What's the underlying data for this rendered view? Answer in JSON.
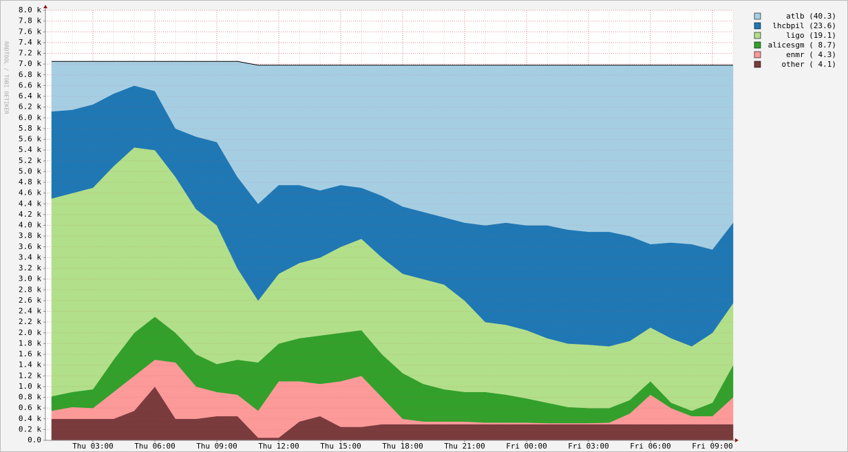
{
  "chart_data": {
    "type": "area",
    "stacked": true,
    "watermark": "RRDTOOL / TOBI OETIKER",
    "categories": [
      null,
      null,
      "Thu 03:00",
      null,
      null,
      "Thu 06:00",
      null,
      null,
      "Thu 09:00",
      null,
      null,
      "Thu 12:00",
      null,
      null,
      "Thu 15:00",
      null,
      null,
      "Thu 18:00",
      null,
      null,
      "Thu 21:00",
      null,
      null,
      "Fri 00:00",
      null,
      null,
      "Fri 03:00",
      null,
      null,
      "Fri 06:00",
      null,
      null,
      "Fri 09:00",
      null
    ],
    "series": [
      {
        "name": "atlb (40.3)",
        "color": "#a6cee3",
        "values": [
          930,
          900,
          800,
          600,
          450,
          550,
          1250,
          1400,
          1500,
          2150,
          2580,
          2230,
          2230,
          2330,
          2230,
          2280,
          2430,
          2630,
          2730,
          2830,
          2930,
          2980,
          2930,
          2980,
          2980,
          3060,
          3100,
          3100,
          3180,
          3330,
          3300,
          3330,
          3430,
          2930
        ]
      },
      {
        "name": "lhcbpil (23.6)",
        "color": "#1f78b4",
        "values": [
          1620,
          1550,
          1550,
          1350,
          1150,
          1100,
          900,
          1350,
          1550,
          1700,
          1800,
          1650,
          1450,
          1250,
          1150,
          950,
          1150,
          1250,
          1250,
          1250,
          1450,
          1800,
          1900,
          1950,
          2100,
          2120,
          2100,
          2130,
          1950,
          1550,
          1780,
          1900,
          1550,
          1500
        ]
      },
      {
        "name": "ligo (19.1)",
        "color": "#b2df8a",
        "values": [
          3680,
          3700,
          3750,
          3600,
          3450,
          3100,
          2900,
          2700,
          2580,
          1700,
          1150,
          1300,
          1400,
          1450,
          1600,
          1700,
          1800,
          1850,
          1950,
          1950,
          1700,
          1300,
          1300,
          1270,
          1200,
          1180,
          1180,
          1150,
          1100,
          1000,
          1200,
          1200,
          1300,
          1150
        ]
      },
      {
        "name": "alicesgm ( 8.7)",
        "color": "#33a02c",
        "values": [
          270,
          280,
          350,
          600,
          800,
          800,
          550,
          600,
          520,
          650,
          900,
          700,
          800,
          900,
          900,
          850,
          800,
          850,
          700,
          600,
          550,
          570,
          520,
          450,
          380,
          300,
          280,
          270,
          250,
          250,
          100,
          100,
          250,
          600
        ]
      },
      {
        "name": "enmr ( 4.3)",
        "color": "#fb9a99",
        "values": [
          150,
          220,
          200,
          500,
          650,
          500,
          1050,
          600,
          450,
          400,
          500,
          1050,
          750,
          600,
          850,
          950,
          500,
          100,
          50,
          50,
          50,
          30,
          30,
          30,
          20,
          20,
          20,
          30,
          200,
          550,
          300,
          150,
          150,
          500
        ]
      },
      {
        "name": "other ( 4.1)",
        "color": "#7a3b3d",
        "values": [
          400,
          400,
          400,
          400,
          550,
          1000,
          400,
          400,
          450,
          450,
          50,
          50,
          350,
          450,
          250,
          250,
          300,
          300,
          300,
          300,
          300,
          300,
          300,
          300,
          300,
          300,
          300,
          300,
          300,
          300,
          300,
          300,
          300,
          300
        ]
      }
    ],
    "ylim": [
      0,
      8000
    ],
    "yticks": [
      {
        "value": 0,
        "label": "0.0"
      },
      {
        "value": 200,
        "label": "0.2 k"
      },
      {
        "value": 400,
        "label": "0.4 k"
      },
      {
        "value": 600,
        "label": "0.6 k"
      },
      {
        "value": 800,
        "label": "0.8 k"
      },
      {
        "value": 1000,
        "label": "1.0 k"
      },
      {
        "value": 1200,
        "label": "1.2 k"
      },
      {
        "value": 1400,
        "label": "1.4 k"
      },
      {
        "value": 1600,
        "label": "1.6 k"
      },
      {
        "value": 1800,
        "label": "1.8 k"
      },
      {
        "value": 2000,
        "label": "2.0 k"
      },
      {
        "value": 2200,
        "label": "2.2 k"
      },
      {
        "value": 2400,
        "label": "2.4 k"
      },
      {
        "value": 2600,
        "label": "2.6 k"
      },
      {
        "value": 2800,
        "label": "2.8 k"
      },
      {
        "value": 3000,
        "label": "3.0 k"
      },
      {
        "value": 3200,
        "label": "3.2 k"
      },
      {
        "value": 3400,
        "label": "3.4 k"
      },
      {
        "value": 3600,
        "label": "3.6 k"
      },
      {
        "value": 3800,
        "label": "3.8 k"
      },
      {
        "value": 4000,
        "label": "4.0 k"
      },
      {
        "value": 4200,
        "label": "4.2 k"
      },
      {
        "value": 4400,
        "label": "4.4 k"
      },
      {
        "value": 4600,
        "label": "4.6 k"
      },
      {
        "value": 4800,
        "label": "4.8 k"
      },
      {
        "value": 5000,
        "label": "5.0 k"
      },
      {
        "value": 5200,
        "label": "5.2 k"
      },
      {
        "value": 5400,
        "label": "5.4 k"
      },
      {
        "value": 5600,
        "label": "5.6 k"
      },
      {
        "value": 5800,
        "label": "5.8 k"
      },
      {
        "value": 6000,
        "label": "6.0 k"
      },
      {
        "value": 6200,
        "label": "6.2 k"
      },
      {
        "value": 6400,
        "label": "6.4 k"
      },
      {
        "value": 6600,
        "label": "6.6 k"
      },
      {
        "value": 6800,
        "label": "6.8 k"
      },
      {
        "value": 7000,
        "label": "7.0 k"
      },
      {
        "value": 7200,
        "label": "7.2 k"
      },
      {
        "value": 7400,
        "label": "7.4 k"
      },
      {
        "value": 7600,
        "label": "7.6 k"
      },
      {
        "value": 7800,
        "label": "7.8 k"
      },
      {
        "value": 8000,
        "label": "8.0 k"
      }
    ],
    "grid": true,
    "legend": "right"
  }
}
